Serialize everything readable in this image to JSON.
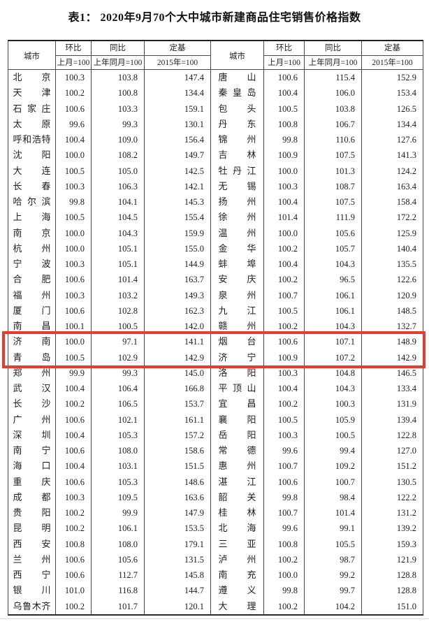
{
  "title": "表1： 2020年9月70个大中城市新建商品住宅销售价格指数",
  "columns": {
    "city": "城市",
    "mom_label": "环比",
    "mom_base": "上月=100",
    "yoy_label": "同比",
    "yoy_base": "上年同月=100",
    "fixed_label": "定基",
    "fixed_base": "2015年=100"
  },
  "highlight": {
    "color": "#e63b2e",
    "left_cities": [
      "济南",
      "青岛"
    ],
    "right_cities": [
      "烟台",
      "济宁"
    ]
  },
  "left_rows": [
    {
      "city": "北京",
      "mom": "100.3",
      "yoy": "103.8",
      "base": "147.4"
    },
    {
      "city": "天津",
      "mom": "100.2",
      "yoy": "100.8",
      "base": "134.4"
    },
    {
      "city": "石家庄",
      "mom": "100.6",
      "yoy": "103.3",
      "base": "159.1"
    },
    {
      "city": "太原",
      "mom": "99.6",
      "yoy": "99.3",
      "base": "130.1"
    },
    {
      "city": "呼和浩特",
      "mom": "100.4",
      "yoy": "109.0",
      "base": "156.4"
    },
    {
      "city": "沈阳",
      "mom": "100.0",
      "yoy": "108.2",
      "base": "149.7"
    },
    {
      "city": "大连",
      "mom": "100.5",
      "yoy": "105.0",
      "base": "142.5"
    },
    {
      "city": "长春",
      "mom": "100.3",
      "yoy": "106.3",
      "base": "142.1"
    },
    {
      "city": "哈尔滨",
      "mom": "99.8",
      "yoy": "104.1",
      "base": "145.3"
    },
    {
      "city": "上海",
      "mom": "100.5",
      "yoy": "104.5",
      "base": "155.4"
    },
    {
      "city": "南京",
      "mom": "100.0",
      "yoy": "104.3",
      "base": "159.9"
    },
    {
      "city": "杭州",
      "mom": "100.0",
      "yoy": "105.1",
      "base": "155.0"
    },
    {
      "city": "宁波",
      "mom": "100.3",
      "yoy": "105.1",
      "base": "144.9"
    },
    {
      "city": "合肥",
      "mom": "100.6",
      "yoy": "101.4",
      "base": "163.7"
    },
    {
      "city": "福州",
      "mom": "100.3",
      "yoy": "103.2",
      "base": "149.3"
    },
    {
      "city": "厦门",
      "mom": "100.6",
      "yoy": "102.8",
      "base": "162.3"
    },
    {
      "city": "南昌",
      "mom": "100.1",
      "yoy": "100.5",
      "base": "142.0"
    },
    {
      "city": "济南",
      "mom": "100.0",
      "yoy": "97.1",
      "base": "141.1"
    },
    {
      "city": "青岛",
      "mom": "100.5",
      "yoy": "102.9",
      "base": "142.9"
    },
    {
      "city": "郑州",
      "mom": "99.9",
      "yoy": "99.3",
      "base": "145.0"
    },
    {
      "city": "武汉",
      "mom": "100.4",
      "yoy": "106.4",
      "base": "166.8"
    },
    {
      "city": "长沙",
      "mom": "100.2",
      "yoy": "106.5",
      "base": "153.7"
    },
    {
      "city": "广州",
      "mom": "100.6",
      "yoy": "102.1",
      "base": "161.1"
    },
    {
      "city": "深圳",
      "mom": "100.4",
      "yoy": "105.3",
      "base": "157.2"
    },
    {
      "city": "南宁",
      "mom": "100.6",
      "yoy": "108.0",
      "base": "158.6"
    },
    {
      "city": "海口",
      "mom": "100.4",
      "yoy": "103.1",
      "base": "151.5"
    },
    {
      "city": "重庆",
      "mom": "100.6",
      "yoy": "105.3",
      "base": "148.6"
    },
    {
      "city": "成都",
      "mom": "100.3",
      "yoy": "109.5",
      "base": "163.6"
    },
    {
      "city": "贵阳",
      "mom": "100.2",
      "yoy": "99.9",
      "base": "147.9"
    },
    {
      "city": "昆明",
      "mom": "100.2",
      "yoy": "106.1",
      "base": "153.5"
    },
    {
      "city": "西安",
      "mom": "100.8",
      "yoy": "108.0",
      "base": "179.1"
    },
    {
      "city": "兰州",
      "mom": "100.6",
      "yoy": "105.6",
      "base": "131.5"
    },
    {
      "city": "西宁",
      "mom": "100.6",
      "yoy": "112.7",
      "base": "145.8"
    },
    {
      "city": "银川",
      "mom": "101.0",
      "yoy": "116.8",
      "base": "144.7"
    },
    {
      "city": "乌鲁木齐",
      "mom": "100.2",
      "yoy": "101.7",
      "base": "120.1"
    }
  ],
  "right_rows": [
    {
      "city": "唐山",
      "mom": "100.6",
      "yoy": "115.4",
      "base": "152.9"
    },
    {
      "city": "秦皇岛",
      "mom": "100.4",
      "yoy": "106.0",
      "base": "153.4"
    },
    {
      "city": "包头",
      "mom": "100.5",
      "yoy": "103.8",
      "base": "126.5"
    },
    {
      "city": "丹东",
      "mom": "100.8",
      "yoy": "106.7",
      "base": "134.4"
    },
    {
      "city": "锦州",
      "mom": "99.8",
      "yoy": "110.6",
      "base": "127.6"
    },
    {
      "city": "吉林",
      "mom": "100.9",
      "yoy": "107.5",
      "base": "141.3"
    },
    {
      "city": "牡丹江",
      "mom": "100.0",
      "yoy": "101.3",
      "base": "124.2"
    },
    {
      "city": "无锡",
      "mom": "100.3",
      "yoy": "108.7",
      "base": "163.4"
    },
    {
      "city": "扬州",
      "mom": "100.4",
      "yoy": "107.5",
      "base": "158.4"
    },
    {
      "city": "徐州",
      "mom": "101.4",
      "yoy": "111.9",
      "base": "172.2"
    },
    {
      "city": "温州",
      "mom": "100.0",
      "yoy": "105.6",
      "base": "125.9"
    },
    {
      "city": "金华",
      "mom": "100.2",
      "yoy": "105.7",
      "base": "140.4"
    },
    {
      "city": "蚌埠",
      "mom": "100.4",
      "yoy": "104.3",
      "base": "135.5"
    },
    {
      "city": "安庆",
      "mom": "100.2",
      "yoy": "96.5",
      "base": "122.6"
    },
    {
      "city": "泉州",
      "mom": "100.7",
      "yoy": "106.1",
      "base": "120.9"
    },
    {
      "city": "九江",
      "mom": "100.5",
      "yoy": "106.1",
      "base": "148.5"
    },
    {
      "city": "赣州",
      "mom": "100.2",
      "yoy": "104.3",
      "base": "132.7"
    },
    {
      "city": "烟台",
      "mom": "100.6",
      "yoy": "107.1",
      "base": "148.9"
    },
    {
      "city": "济宁",
      "mom": "100.9",
      "yoy": "107.2",
      "base": "142.9"
    },
    {
      "city": "洛阳",
      "mom": "100.3",
      "yoy": "104.8",
      "base": "146.5"
    },
    {
      "city": "平顶山",
      "mom": "100.4",
      "yoy": "104.3",
      "base": "133.4"
    },
    {
      "city": "宜昌",
      "mom": "100.2",
      "yoy": "100.3",
      "base": "131.9"
    },
    {
      "city": "襄阳",
      "mom": "100.5",
      "yoy": "105.9",
      "base": "139.4"
    },
    {
      "city": "岳阳",
      "mom": "100.3",
      "yoy": "100.5",
      "base": "122.8"
    },
    {
      "city": "常德",
      "mom": "99.6",
      "yoy": "99.4",
      "base": "127.0"
    },
    {
      "city": "惠州",
      "mom": "100.7",
      "yoy": "109.2",
      "base": "151.2"
    },
    {
      "city": "湛江",
      "mom": "100.6",
      "yoy": "100.7",
      "base": "130.5"
    },
    {
      "city": "韶关",
      "mom": "99.8",
      "yoy": "98.4",
      "base": "122.2"
    },
    {
      "city": "桂林",
      "mom": "100.7",
      "yoy": "101.4",
      "base": "131.2"
    },
    {
      "city": "北海",
      "mom": "99.6",
      "yoy": "99.1",
      "base": "139.2"
    },
    {
      "city": "三亚",
      "mom": "100.8",
      "yoy": "105.5",
      "base": "159.3"
    },
    {
      "city": "泸州",
      "mom": "100.2",
      "yoy": "98.7",
      "base": "121.9"
    },
    {
      "city": "南充",
      "mom": "100.0",
      "yoy": "99.2",
      "base": "128.8"
    },
    {
      "city": "遵义",
      "mom": "99.8",
      "yoy": "99.7",
      "base": "128.8"
    },
    {
      "city": "大理",
      "mom": "100.2",
      "yoy": "104.2",
      "base": "151.0"
    }
  ]
}
